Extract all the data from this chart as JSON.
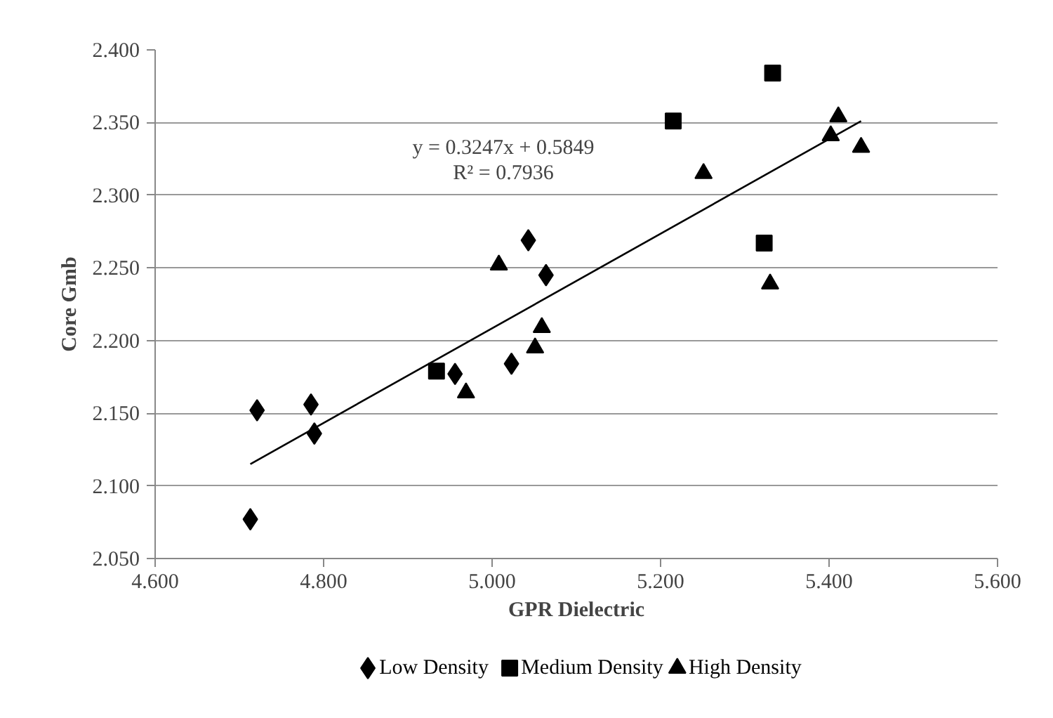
{
  "chart_data": {
    "type": "scatter",
    "xlabel": "GPR Dielectric",
    "ylabel": "Core Gmb",
    "xlim": [
      4.6,
      5.6
    ],
    "xticks": [
      {
        "value": 4.6,
        "label": "4.600"
      },
      {
        "value": 4.8,
        "label": "4.800"
      },
      {
        "value": 5.0,
        "label": "5.000"
      },
      {
        "value": 5.2,
        "label": "5.200"
      },
      {
        "value": 5.4,
        "label": "5.400"
      },
      {
        "value": 5.6,
        "label": "5.600"
      }
    ],
    "ylim": [
      2.05,
      2.4
    ],
    "yticks": [
      {
        "value": 2.05,
        "label": "2.050"
      },
      {
        "value": 2.1,
        "label": "2.100"
      },
      {
        "value": 2.15,
        "label": "2.150"
      },
      {
        "value": 2.2,
        "label": "2.200"
      },
      {
        "value": 2.25,
        "label": "2.250"
      },
      {
        "value": 2.3,
        "label": "2.300"
      },
      {
        "value": 2.35,
        "label": "2.350"
      },
      {
        "value": 2.4,
        "label": "2.400"
      }
    ],
    "grid": "y",
    "legend": "bottom",
    "annotations": [
      "y = 0.3247x + 0.5849",
      "R² = 0.7936"
    ],
    "series": [
      {
        "name": "Low Density",
        "color": "#000000",
        "marker": "diamond",
        "x": [
          4.713,
          4.721,
          4.785,
          4.789,
          4.956,
          5.023,
          5.043,
          5.064
        ],
        "values": [
          2.077,
          2.152,
          2.156,
          2.136,
          2.177,
          2.184,
          2.269,
          2.245
        ]
      },
      {
        "name": "Medium Density",
        "color": "#000000",
        "marker": "square",
        "x": [
          4.934,
          5.215,
          5.333,
          5.323
        ],
        "values": [
          2.179,
          2.351,
          2.384,
          2.267
        ]
      },
      {
        "name": "High Density",
        "color": "#000000",
        "marker": "triangle",
        "x": [
          4.969,
          5.008,
          5.051,
          5.059,
          5.251,
          5.33,
          5.402,
          5.411,
          5.438
        ],
        "values": [
          2.164,
          2.252,
          2.195,
          2.209,
          2.315,
          2.239,
          2.341,
          2.354,
          2.333
        ]
      },
      {
        "type": "line",
        "color": "#000000",
        "marker": "none",
        "line_style": "solid",
        "x": [
          4.713,
          5.438
        ],
        "values": [
          2.115,
          2.351
        ]
      }
    ]
  }
}
